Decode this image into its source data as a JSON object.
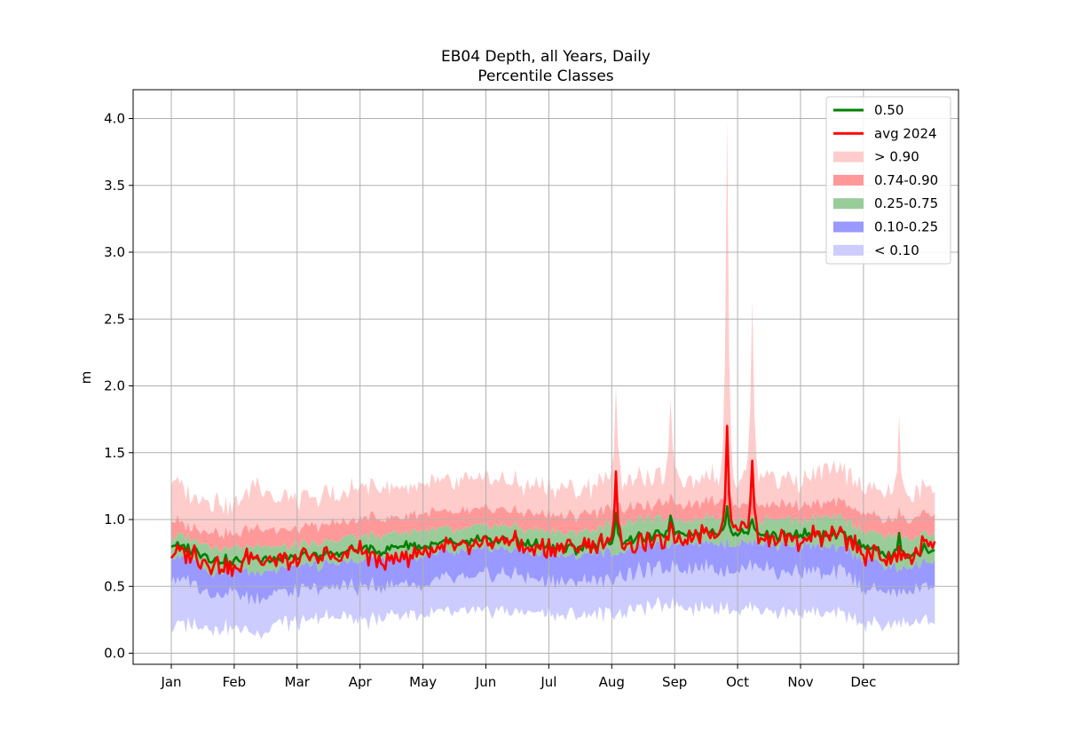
{
  "chart_data": {
    "type": "area",
    "title": "EB04 Depth, all Years, Daily",
    "subtitle": "Percentile Classes",
    "xlabel": "",
    "ylabel": "m",
    "xlim_days": [
      -6,
      371
    ],
    "ylim": [
      -0.08,
      4.22
    ],
    "x_ticks": [
      {
        "label": "Jan",
        "day": 0
      },
      {
        "label": "Feb",
        "day": 30
      },
      {
        "label": "Mar",
        "day": 60
      },
      {
        "label": "Apr",
        "day": 90
      },
      {
        "label": "May",
        "day": 120
      },
      {
        "label": "Jun",
        "day": 150
      },
      {
        "label": "Jul",
        "day": 180
      },
      {
        "label": "Aug",
        "day": 210
      },
      {
        "label": "Sep",
        "day": 240
      },
      {
        "label": "Oct",
        "day": 270
      },
      {
        "label": "Nov",
        "day": 300
      },
      {
        "label": "Dec",
        "day": 330
      }
    ],
    "y_ticks": [
      "0.0",
      "0.5",
      "1.0",
      "1.5",
      "2.0",
      "2.5",
      "3.0",
      "3.5",
      "4.0"
    ],
    "grid": true,
    "legend_position": "top-right",
    "legend": [
      {
        "label": "0.50",
        "kind": "line",
        "color": "#008000"
      },
      {
        "label": "avg 2024",
        "kind": "line",
        "color": "#ff0000"
      },
      {
        "label": "> 0.90",
        "kind": "patch",
        "color": "#ffcccc"
      },
      {
        "label": "0.74-0.90",
        "kind": "patch",
        "color": "#ff9999"
      },
      {
        "label": "0.25-0.75",
        "kind": "patch",
        "color": "#99cc99"
      },
      {
        "label": "0.10-0.25",
        "kind": "patch",
        "color": "#9999ff"
      },
      {
        "label": "< 0.10",
        "kind": "patch",
        "color": "#ccccff"
      }
    ],
    "series_keypoints": {
      "x_days": [
        0,
        10,
        20,
        30,
        40,
        50,
        60,
        70,
        80,
        90,
        100,
        110,
        120,
        130,
        140,
        150,
        160,
        170,
        180,
        190,
        200,
        210,
        220,
        230,
        240,
        250,
        260,
        270,
        280,
        290,
        300,
        310,
        320,
        330,
        340,
        350,
        360
      ],
      "p00": [
        0.2,
        0.22,
        0.18,
        0.2,
        0.15,
        0.23,
        0.22,
        0.25,
        0.3,
        0.22,
        0.28,
        0.3,
        0.28,
        0.3,
        0.3,
        0.3,
        0.32,
        0.3,
        0.3,
        0.28,
        0.3,
        0.3,
        0.32,
        0.35,
        0.38,
        0.33,
        0.35,
        0.32,
        0.35,
        0.3,
        0.32,
        0.28,
        0.3,
        0.22,
        0.2,
        0.22,
        0.25
      ],
      "p10": [
        0.55,
        0.55,
        0.42,
        0.45,
        0.4,
        0.45,
        0.45,
        0.48,
        0.52,
        0.48,
        0.5,
        0.52,
        0.5,
        0.55,
        0.55,
        0.58,
        0.6,
        0.55,
        0.55,
        0.52,
        0.55,
        0.55,
        0.6,
        0.62,
        0.65,
        0.63,
        0.65,
        0.62,
        0.65,
        0.6,
        0.62,
        0.58,
        0.6,
        0.5,
        0.45,
        0.45,
        0.5
      ],
      "p25": [
        0.72,
        0.7,
        0.6,
        0.62,
        0.6,
        0.62,
        0.65,
        0.65,
        0.68,
        0.68,
        0.72,
        0.72,
        0.72,
        0.75,
        0.75,
        0.78,
        0.78,
        0.75,
        0.75,
        0.72,
        0.75,
        0.75,
        0.78,
        0.8,
        0.82,
        0.82,
        0.82,
        0.82,
        0.82,
        0.8,
        0.82,
        0.78,
        0.78,
        0.7,
        0.65,
        0.62,
        0.68
      ],
      "p50": [
        0.8,
        0.78,
        0.7,
        0.68,
        0.72,
        0.7,
        0.72,
        0.72,
        0.75,
        0.78,
        0.78,
        0.8,
        0.8,
        0.82,
        0.82,
        0.85,
        0.85,
        0.82,
        0.8,
        0.78,
        0.8,
        0.82,
        0.85,
        0.88,
        0.9,
        0.9,
        0.92,
        0.9,
        0.9,
        0.88,
        0.9,
        0.88,
        0.88,
        0.8,
        0.75,
        0.72,
        0.78
      ],
      "p75": [
        0.88,
        0.85,
        0.8,
        0.78,
        0.8,
        0.8,
        0.8,
        0.82,
        0.85,
        0.88,
        0.88,
        0.9,
        0.92,
        0.92,
        0.92,
        0.95,
        0.95,
        0.92,
        0.92,
        0.9,
        0.92,
        0.95,
        0.98,
        1.0,
        1.0,
        1.0,
        1.02,
        1.0,
        1.0,
        1.0,
        1.0,
        1.0,
        1.0,
        0.92,
        0.88,
        0.85,
        0.9
      ],
      "p90": [
        1.0,
        0.95,
        0.92,
        0.88,
        0.95,
        0.92,
        0.92,
        0.95,
        0.98,
        1.0,
        1.02,
        1.02,
        1.05,
        1.05,
        1.05,
        1.08,
        1.08,
        1.05,
        1.05,
        1.03,
        1.05,
        1.08,
        1.1,
        1.1,
        1.12,
        1.12,
        1.15,
        1.12,
        1.12,
        1.12,
        1.12,
        1.12,
        1.12,
        1.05,
        1.0,
        0.98,
        1.05
      ],
      "p100": [
        1.3,
        1.2,
        1.15,
        1.1,
        1.3,
        1.15,
        1.15,
        1.15,
        1.2,
        1.25,
        1.25,
        1.22,
        1.28,
        1.25,
        1.28,
        1.3,
        1.28,
        1.25,
        1.25,
        1.22,
        1.25,
        1.3,
        1.3,
        1.28,
        1.35,
        1.3,
        1.35,
        1.3,
        1.35,
        1.3,
        1.3,
        1.35,
        1.35,
        1.25,
        1.2,
        1.15,
        1.25
      ],
      "avg_2024": [
        0.74,
        0.75,
        0.68,
        0.62,
        0.75,
        0.7,
        0.7,
        0.72,
        0.72,
        0.78,
        0.7,
        0.72,
        0.75,
        0.78,
        0.8,
        0.8,
        0.85,
        0.78,
        0.78,
        0.8,
        0.8,
        0.82,
        0.8,
        0.82,
        0.86,
        0.88,
        0.92,
        0.95,
        0.88,
        0.85,
        0.85,
        0.88,
        0.88,
        0.75,
        0.72,
        0.7,
        0.82
      ]
    },
    "peaks": [
      {
        "day": 212,
        "p100": 2.0,
        "p90": 1.2,
        "p50": 1.05,
        "avg_2024": 1.36
      },
      {
        "day": 238,
        "p100": 1.9,
        "p90": 1.2,
        "p50": 1.03,
        "avg_2024": 0.98
      },
      {
        "day": 265,
        "p100": 4.0,
        "p90": 1.5,
        "p50": 1.1,
        "avg_2024": 1.7
      },
      {
        "day": 277,
        "p100": 2.65,
        "p90": 1.3,
        "p50": 1.0,
        "avg_2024": 1.44
      },
      {
        "day": 347,
        "p100": 1.78,
        "p90": 1.1,
        "p50": 0.9,
        "avg_2024": 0.8
      }
    ],
    "colors": {
      "gt_090": "#ffcccc",
      "p74_090": "#ff9999",
      "p25_075": "#99cc99",
      "p10_025": "#9999ff",
      "lt_010": "#ccccff",
      "median": "#008000",
      "avg": "#ff0000",
      "grid": "#b0b0b0"
    }
  }
}
